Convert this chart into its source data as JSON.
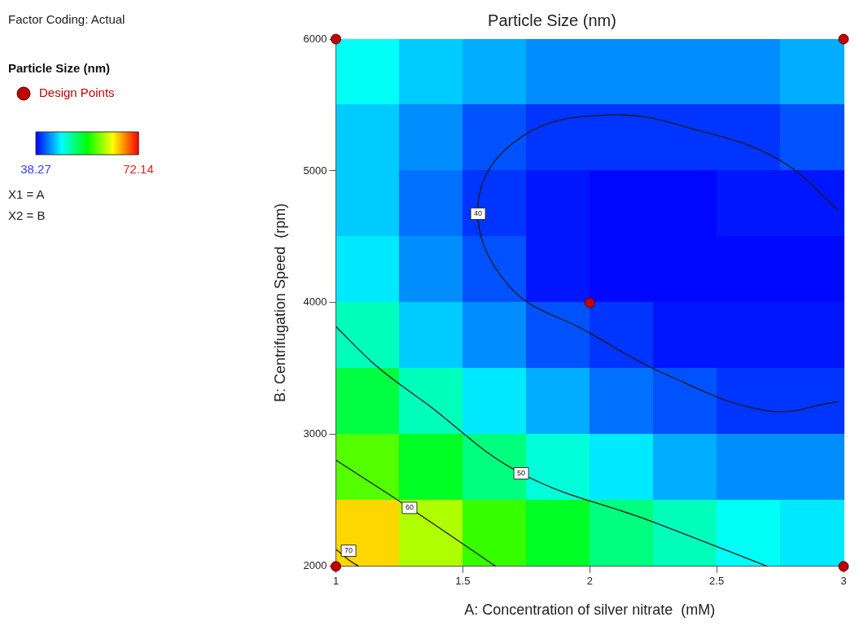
{
  "chart_data": {
    "type": "heatmap",
    "title": "Particle Size (nm)",
    "xlabel": "A: Concentration of silver nitrate  (mM)",
    "ylabel": "B: Centrifugation Speed  (rpm)",
    "legend_title": "Particle Size (nm)",
    "legend": "left",
    "x": [
      1.125,
      1.375,
      1.625,
      1.875,
      2.125,
      2.375,
      2.625,
      2.875
    ],
    "y": [
      5750,
      5250,
      4750,
      4250,
      3750,
      3250,
      2750,
      2250
    ],
    "cells": [
      [
        47,
        45,
        44,
        43,
        43,
        43,
        43,
        44
      ],
      [
        45,
        43,
        41,
        40,
        40,
        40,
        40,
        41
      ],
      [
        45,
        42,
        40,
        39,
        38.5,
        38.5,
        39,
        39
      ],
      [
        46,
        43,
        41,
        39,
        38.5,
        38.5,
        38.5,
        38.5
      ],
      [
        49,
        45,
        43,
        41,
        40,
        39,
        39,
        39
      ],
      [
        53,
        49,
        46,
        44,
        42,
        41,
        40,
        40
      ],
      [
        58,
        54,
        51,
        48,
        46,
        44,
        43,
        43
      ],
      [
        65,
        61,
        57,
        54,
        51,
        49,
        47,
        46
      ]
    ],
    "clim": [
      38.27,
      72.14
    ],
    "cticks": [
      38.27,
      72.14
    ],
    "xlim": [
      1,
      3
    ],
    "xticks": [
      1,
      1.5,
      2,
      2.5,
      3
    ],
    "ylim": [
      2000,
      6000
    ],
    "yticks": [
      2000,
      3000,
      4000,
      5000,
      6000
    ],
    "grid": false,
    "series": [
      {
        "type": "line",
        "color": "#1a1a1a",
        "x": [
          2.98,
          2.75,
          2.43,
          2.08,
          1.73,
          1.56,
          1.68,
          1.99,
          2.3,
          2.7,
          2.98
        ],
        "values": [
          4700,
          5080,
          5306,
          5425,
          5256,
          4756,
          4131,
          3781,
          3456,
          3181,
          3250
        ]
      },
      {
        "type": "line",
        "color": "#1a1a1a",
        "x": [
          1,
          1.16,
          1.35,
          1.73,
          2.24,
          2.7
        ],
        "values": [
          3819,
          3519,
          3244,
          2706,
          2344,
          2000
        ]
      },
      {
        "type": "line",
        "color": "#1a1a1a",
        "x": [
          1,
          1.29,
          1.63
        ],
        "values": [
          2806,
          2444,
          2000
        ]
      },
      {
        "type": "line",
        "color": "#1a1a1a",
        "x": [
          1,
          1.05,
          1.09
        ],
        "values": [
          2130,
          2050,
          2000
        ]
      },
      {
        "type": "scatter",
        "name": "Design Points",
        "color": "#c00000",
        "marker": "circle",
        "x": [
          1,
          3,
          2,
          1,
          3
        ],
        "values": [
          6000,
          6000,
          4000,
          2000,
          2000
        ]
      }
    ],
    "annotations": [
      "Factor Coding: Actual",
      "X1 = A",
      "X2 = B",
      {
        "text": "40",
        "x": 1.56,
        "y": 4675
      },
      {
        "text": "50",
        "x": 1.73,
        "y": 2706
      },
      {
        "text": "60",
        "x": 1.29,
        "y": 2444
      },
      {
        "text": "70",
        "x": 1.05,
        "y": 2119
      }
    ]
  }
}
